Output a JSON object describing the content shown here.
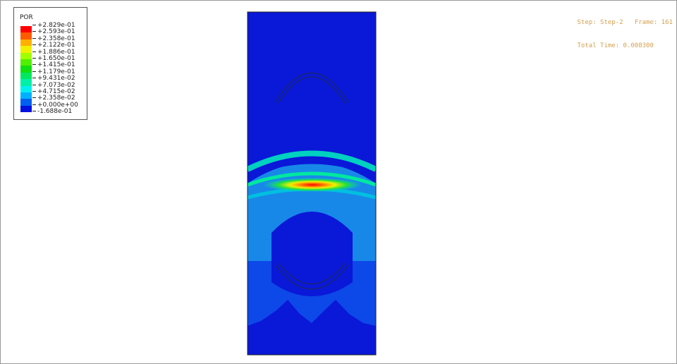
{
  "legend": {
    "title": "POR",
    "labels": [
      "+2.829e-01",
      "+2.593e-01",
      "+2.358e-01",
      "+2.122e-01",
      "+1.886e-01",
      "+1.650e-01",
      "+1.415e-01",
      "+1.179e-01",
      "+9.431e-02",
      "+7.073e-02",
      "+4.715e-02",
      "+2.358e-02",
      "+0.000e+00",
      "-1.688e-01"
    ],
    "colors": [
      "#ff0000",
      "#ff5a00",
      "#ffb000",
      "#f0f000",
      "#a0ff00",
      "#50f000",
      "#10e010",
      "#00e860",
      "#00f0a8",
      "#00f0f0",
      "#00b0ff",
      "#0060f0",
      "#0010e0"
    ]
  },
  "info": {
    "step_label": "Step: Step-2",
    "frame_label": "Frame: 161",
    "time_label": "Total Time: 0.008300"
  },
  "colors": {
    "background_field": "#0a18d8",
    "mid_field": "#0d48e8",
    "light_field": "#1888e8",
    "info_text": "#d4a050"
  }
}
